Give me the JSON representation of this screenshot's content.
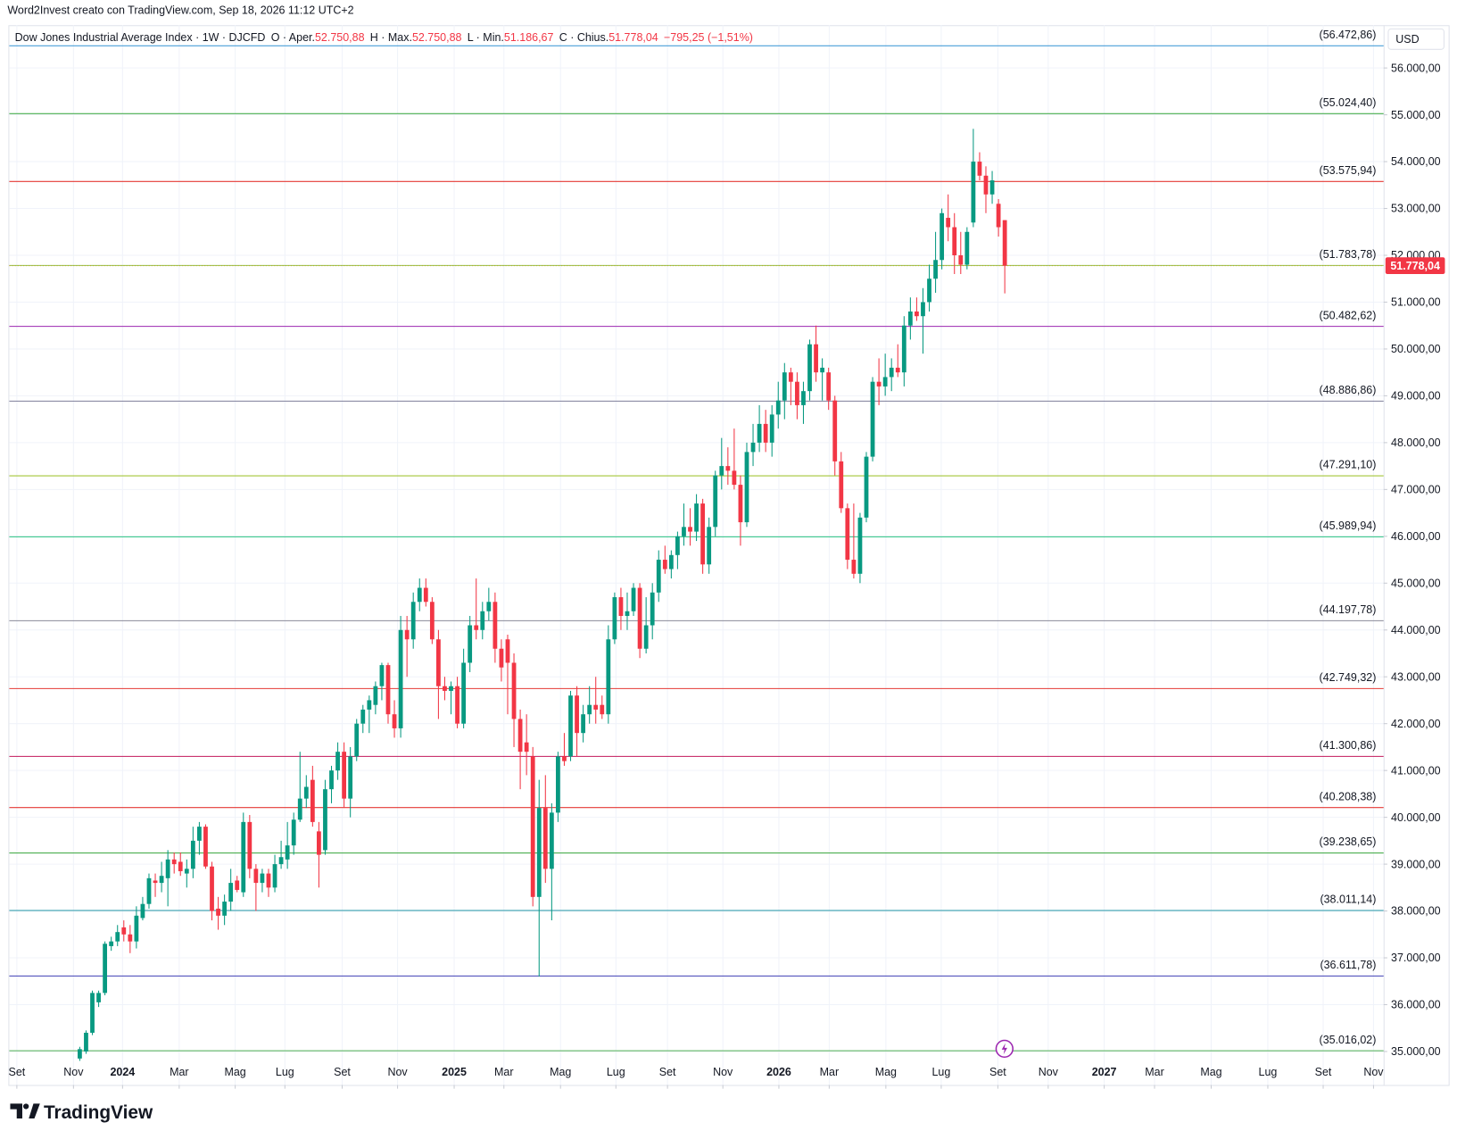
{
  "header": {
    "credit": "Word2Invest creato con TradingView.com, Sep 18, 2026 11:12 UTC+2",
    "brand": "TradingView"
  },
  "chart_data": {
    "type": "candlestick",
    "legend": {
      "symbol": "Dow Jones Industrial Average Index · 1W · DJCFD",
      "items": [
        {
          "label": "O · Aper.",
          "value": "52.750,88"
        },
        {
          "label": "H · Max.",
          "value": "52.750,88"
        },
        {
          "label": "L · Min.",
          "value": "51.186,67"
        },
        {
          "label": "C · Chius.",
          "value": "51.778,04"
        }
      ],
      "change": "−795,25 (−1,51%)"
    },
    "currency": "USD",
    "up_color": "#089981",
    "down_color": "#f23645",
    "grid": true,
    "xlim": [
      -11.2,
      207.2
    ],
    "xticks": [
      {
        "value": -10,
        "label": "Set"
      },
      {
        "value": -1,
        "label": "Nov"
      },
      {
        "value": 6.8,
        "label": "2024"
      },
      {
        "value": 15.8,
        "label": "Mar"
      },
      {
        "value": 24.7,
        "label": "Mag"
      },
      {
        "value": 32.6,
        "label": "Lug"
      },
      {
        "value": 41.7,
        "label": "Set"
      },
      {
        "value": 50.5,
        "label": "Nov"
      },
      {
        "value": 59.5,
        "label": "2025"
      },
      {
        "value": 67.4,
        "label": "Mar"
      },
      {
        "value": 76.4,
        "label": "Mag"
      },
      {
        "value": 85.2,
        "label": "Lug"
      },
      {
        "value": 93.4,
        "label": "Set"
      },
      {
        "value": 102.2,
        "label": "Nov"
      },
      {
        "value": 111.1,
        "label": "2026"
      },
      {
        "value": 119.1,
        "label": "Mar"
      },
      {
        "value": 128.1,
        "label": "Mag"
      },
      {
        "value": 136.9,
        "label": "Lug"
      },
      {
        "value": 145.9,
        "label": "Set"
      },
      {
        "value": 153.9,
        "label": "Nov"
      },
      {
        "value": 162.8,
        "label": "2027"
      },
      {
        "value": 170.8,
        "label": "Mar"
      },
      {
        "value": 179.8,
        "label": "Mag"
      },
      {
        "value": 188.8,
        "label": "Lug"
      },
      {
        "value": 197.6,
        "label": "Set"
      },
      {
        "value": 205.6,
        "label": "Nov"
      }
    ],
    "ylim": [
      34285,
      56913
    ],
    "yticks": [
      {
        "value": 35000,
        "label": "35.000,00"
      },
      {
        "value": 36000,
        "label": "36.000,00"
      },
      {
        "value": 37000,
        "label": "37.000,00"
      },
      {
        "value": 38000,
        "label": "38.000,00"
      },
      {
        "value": 39000,
        "label": "39.000,00"
      },
      {
        "value": 40000,
        "label": "40.000,00"
      },
      {
        "value": 41000,
        "label": "41.000,00"
      },
      {
        "value": 42000,
        "label": "42.000,00"
      },
      {
        "value": 43000,
        "label": "43.000,00"
      },
      {
        "value": 44000,
        "label": "44.000,00"
      },
      {
        "value": 45000,
        "label": "45.000,00"
      },
      {
        "value": 46000,
        "label": "46.000,00"
      },
      {
        "value": 47000,
        "label": "47.000,00"
      },
      {
        "value": 48000,
        "label": "48.000,00"
      },
      {
        "value": 49000,
        "label": "49.000,00"
      },
      {
        "value": 50000,
        "label": "50.000,00"
      },
      {
        "value": 51000,
        "label": "51.000,00"
      },
      {
        "value": 52000,
        "label": "52.000,00"
      },
      {
        "value": 53000,
        "label": "53.000,00"
      },
      {
        "value": 54000,
        "label": "54.000,00"
      },
      {
        "value": 55000,
        "label": "55.000,00"
      },
      {
        "value": 56000,
        "label": "56.000,00"
      }
    ],
    "levels": [
      {
        "value": 56472.86,
        "label": "(56.472,86)",
        "color": "#4a9fd8"
      },
      {
        "value": 55024.4,
        "label": "(55.024,40)",
        "color": "#4caf50"
      },
      {
        "value": 53575.94,
        "label": "(53.575,94)",
        "color": "#e53935"
      },
      {
        "value": 51783.78,
        "label": "(51.783,78)",
        "color": "#8bc34a"
      },
      {
        "value": 50482.62,
        "label": "(50.482,62)",
        "color": "#9c27b0"
      },
      {
        "value": 48886.86,
        "label": "(48.886,86)",
        "color": "#7e7e9a"
      },
      {
        "value": 47291.1,
        "label": "(47.291,10)",
        "color": "#a4c639"
      },
      {
        "value": 45989.94,
        "label": "(45.989,94)",
        "color": "#26c281"
      },
      {
        "value": 44197.78,
        "label": "(44.197,78)",
        "color": "#8a8a99"
      },
      {
        "value": 42749.32,
        "label": "(42.749,32)",
        "color": "#e53935"
      },
      {
        "value": 41300.86,
        "label": "(41.300,86)",
        "color": "#c2185b"
      },
      {
        "value": 40208.38,
        "label": "(40.208,38)",
        "color": "#e53935"
      },
      {
        "value": 39238.65,
        "label": "(39.238,65)",
        "color": "#4caf50"
      },
      {
        "value": 38011.14,
        "label": "(38.011,14)",
        "color": "#2196a6"
      },
      {
        "value": 36611.78,
        "label": "(36.611,78)",
        "color": "#3f3fb5"
      },
      {
        "value": 35016.02,
        "label": "(35.016,02)",
        "color": "#4caf50"
      }
    ],
    "last_price": {
      "value": 51778.04,
      "label": "51.778,04",
      "color": "#f23645"
    },
    "candles": [
      [
        34850,
        35100,
        34800,
        35050
      ],
      [
        35000,
        35450,
        34950,
        35400
      ],
      [
        35400,
        36300,
        35350,
        36250
      ],
      [
        36050,
        36300,
        35950,
        36250
      ],
      [
        36250,
        37350,
        36200,
        37300
      ],
      [
        37250,
        37450,
        37150,
        37350
      ],
      [
        37350,
        37700,
        37250,
        37550
      ],
      [
        37650,
        37800,
        37350,
        37500
      ],
      [
        37500,
        37700,
        37100,
        37350
      ],
      [
        37350,
        38100,
        37200,
        37900
      ],
      [
        37850,
        38300,
        37800,
        38150
      ],
      [
        38150,
        38800,
        38050,
        38700
      ],
      [
        38650,
        38800,
        38300,
        38600
      ],
      [
        38600,
        39050,
        38400,
        38750
      ],
      [
        38700,
        39300,
        38100,
        39100
      ],
      [
        39100,
        39250,
        38800,
        39000
      ],
      [
        39050,
        39250,
        38750,
        38850
      ],
      [
        38800,
        39100,
        38500,
        38900
      ],
      [
        38900,
        39800,
        38700,
        39500
      ],
      [
        39500,
        39900,
        39200,
        39800
      ],
      [
        39800,
        39850,
        38900,
        38950
      ],
      [
        38950,
        39050,
        37800,
        38000
      ],
      [
        38050,
        38300,
        37600,
        37900
      ],
      [
        37900,
        38350,
        37700,
        38200
      ],
      [
        38200,
        38900,
        38000,
        38600
      ],
      [
        38650,
        38750,
        38400,
        38450
      ],
      [
        38400,
        40100,
        38300,
        39900
      ],
      [
        39900,
        40050,
        38700,
        38900
      ],
      [
        38900,
        39000,
        38000,
        38600
      ],
      [
        38600,
        38900,
        38400,
        38800
      ],
      [
        38800,
        38900,
        38300,
        38500
      ],
      [
        38500,
        39200,
        38400,
        39000
      ],
      [
        39000,
        39500,
        38900,
        39150
      ],
      [
        39100,
        39900,
        38900,
        39400
      ],
      [
        39400,
        40100,
        39200,
        39950
      ],
      [
        39950,
        41400,
        39900,
        40400
      ],
      [
        40400,
        40900,
        40200,
        40650
      ],
      [
        40800,
        41100,
        39800,
        39900
      ],
      [
        39700,
        39900,
        38500,
        39200
      ],
      [
        39300,
        40800,
        39200,
        40600
      ],
      [
        40600,
        41100,
        40300,
        41000
      ],
      [
        41000,
        41600,
        40800,
        41400
      ],
      [
        41400,
        41600,
        40200,
        40400
      ],
      [
        40400,
        41500,
        40000,
        41300
      ],
      [
        41300,
        42100,
        41200,
        42000
      ],
      [
        42000,
        42400,
        41800,
        42300
      ],
      [
        42300,
        42600,
        41800,
        42500
      ],
      [
        42400,
        42900,
        42200,
        42800
      ],
      [
        42800,
        43300,
        42500,
        43250
      ],
      [
        43250,
        43300,
        42000,
        42200
      ],
      [
        42200,
        42500,
        41700,
        41900
      ],
      [
        41900,
        44300,
        41700,
        44000
      ],
      [
        44000,
        44300,
        43000,
        43800
      ],
      [
        43800,
        44800,
        43600,
        44600
      ],
      [
        44600,
        45100,
        44400,
        44900
      ],
      [
        44900,
        45100,
        44500,
        44600
      ],
      [
        44600,
        44700,
        43700,
        43800
      ],
      [
        43800,
        44000,
        42100,
        42800
      ],
      [
        42800,
        43000,
        42500,
        42700
      ],
      [
        42700,
        42900,
        42200,
        42800
      ],
      [
        42800,
        43000,
        41900,
        42000
      ],
      [
        42000,
        43600,
        41900,
        43300
      ],
      [
        43300,
        44300,
        43100,
        44100
      ],
      [
        44100,
        45100,
        43800,
        44000
      ],
      [
        44000,
        44600,
        43800,
        44400
      ],
      [
        44400,
        44900,
        44200,
        44600
      ],
      [
        44600,
        44800,
        43300,
        43600
      ],
      [
        43600,
        43800,
        42900,
        43200
      ],
      [
        43800,
        43900,
        42200,
        43300
      ],
      [
        43300,
        43500,
        41500,
        42100
      ],
      [
        42100,
        42300,
        40600,
        41400
      ],
      [
        41600,
        42200,
        40900,
        41400
      ],
      [
        41300,
        41500,
        38100,
        38300
      ],
      [
        38300,
        40800,
        36600,
        40200
      ],
      [
        40200,
        40900,
        38600,
        38900
      ],
      [
        38900,
        40300,
        37800,
        40100
      ],
      [
        40100,
        41400,
        39900,
        41300
      ],
      [
        41300,
        41800,
        41100,
        41200
      ],
      [
        41300,
        42700,
        41200,
        42600
      ],
      [
        42600,
        42800,
        41300,
        41800
      ],
      [
        41800,
        42400,
        41600,
        42200
      ],
      [
        42200,
        42800,
        42000,
        42400
      ],
      [
        42400,
        43000,
        42000,
        42300
      ],
      [
        42400,
        42600,
        42100,
        42200
      ],
      [
        42200,
        44100,
        42000,
        43800
      ],
      [
        43800,
        44800,
        43700,
        44700
      ],
      [
        44700,
        44900,
        44000,
        44300
      ],
      [
        44300,
        44800,
        44000,
        44400
      ],
      [
        44400,
        45000,
        44300,
        44900
      ],
      [
        44900,
        45000,
        43400,
        43600
      ],
      [
        43600,
        44700,
        43500,
        44100
      ],
      [
        44100,
        45000,
        43800,
        44800
      ],
      [
        44800,
        45700,
        44600,
        45500
      ],
      [
        45500,
        45800,
        45200,
        45300
      ],
      [
        45300,
        45700,
        45100,
        45600
      ],
      [
        45600,
        46100,
        45300,
        46000
      ],
      [
        46000,
        46700,
        45800,
        46200
      ],
      [
        46200,
        46600,
        45800,
        46100
      ],
      [
        46100,
        46900,
        45900,
        46700
      ],
      [
        46700,
        46800,
        45200,
        45400
      ],
      [
        45400,
        46400,
        45200,
        46200
      ],
      [
        46200,
        47400,
        46000,
        47300
      ],
      [
        47300,
        48100,
        47000,
        47500
      ],
      [
        47500,
        47900,
        47100,
        47400
      ],
      [
        47400,
        48300,
        47000,
        47100
      ],
      [
        47100,
        47300,
        45800,
        46300
      ],
      [
        46300,
        48000,
        46200,
        47800
      ],
      [
        47800,
        48400,
        47500,
        48000
      ],
      [
        48000,
        48800,
        47800,
        48400
      ],
      [
        48400,
        48700,
        47800,
        48000
      ],
      [
        48000,
        48800,
        47700,
        48600
      ],
      [
        48600,
        49300,
        48300,
        48900
      ],
      [
        48900,
        49700,
        48500,
        49500
      ],
      [
        49500,
        49600,
        48800,
        49300
      ],
      [
        49300,
        49500,
        48500,
        48800
      ],
      [
        48800,
        49300,
        48400,
        49100
      ],
      [
        49100,
        50200,
        48900,
        50100
      ],
      [
        50100,
        50500,
        49300,
        49500
      ],
      [
        49500,
        49800,
        48900,
        49600
      ],
      [
        49500,
        49600,
        48700,
        48900
      ],
      [
        48900,
        49000,
        47300,
        47600
      ],
      [
        47600,
        47800,
        46500,
        46600
      ],
      [
        46600,
        46700,
        45300,
        45500
      ],
      [
        45500,
        46700,
        45100,
        45200
      ],
      [
        45200,
        46500,
        45000,
        46400
      ],
      [
        46400,
        47800,
        46300,
        47700
      ],
      [
        47700,
        49400,
        47600,
        49300
      ],
      [
        49300,
        49800,
        48800,
        49200
      ],
      [
        49200,
        49900,
        49000,
        49400
      ],
      [
        49400,
        49800,
        49100,
        49600
      ],
      [
        49600,
        50100,
        49400,
        49500
      ],
      [
        49500,
        50700,
        49200,
        50500
      ],
      [
        50500,
        51100,
        50200,
        50800
      ],
      [
        50800,
        51100,
        50600,
        50700
      ],
      [
        50700,
        51300,
        49900,
        51000
      ],
      [
        51000,
        51800,
        50800,
        51500
      ],
      [
        51500,
        52500,
        51200,
        51900
      ],
      [
        51900,
        53000,
        51700,
        52900
      ],
      [
        52800,
        53300,
        52300,
        52600
      ],
      [
        52600,
        52900,
        51600,
        52000
      ],
      [
        52000,
        52500,
        51600,
        51800
      ],
      [
        51800,
        52600,
        51700,
        52500
      ],
      [
        52700,
        54700,
        52600,
        54000
      ],
      [
        54000,
        54200,
        53600,
        53700
      ],
      [
        53700,
        53900,
        52900,
        53300
      ],
      [
        53300,
        53800,
        53100,
        53600
      ],
      [
        53100,
        53200,
        52400,
        52600
      ],
      [
        52750.88,
        52750.88,
        51186.67,
        51778.04
      ]
    ]
  }
}
